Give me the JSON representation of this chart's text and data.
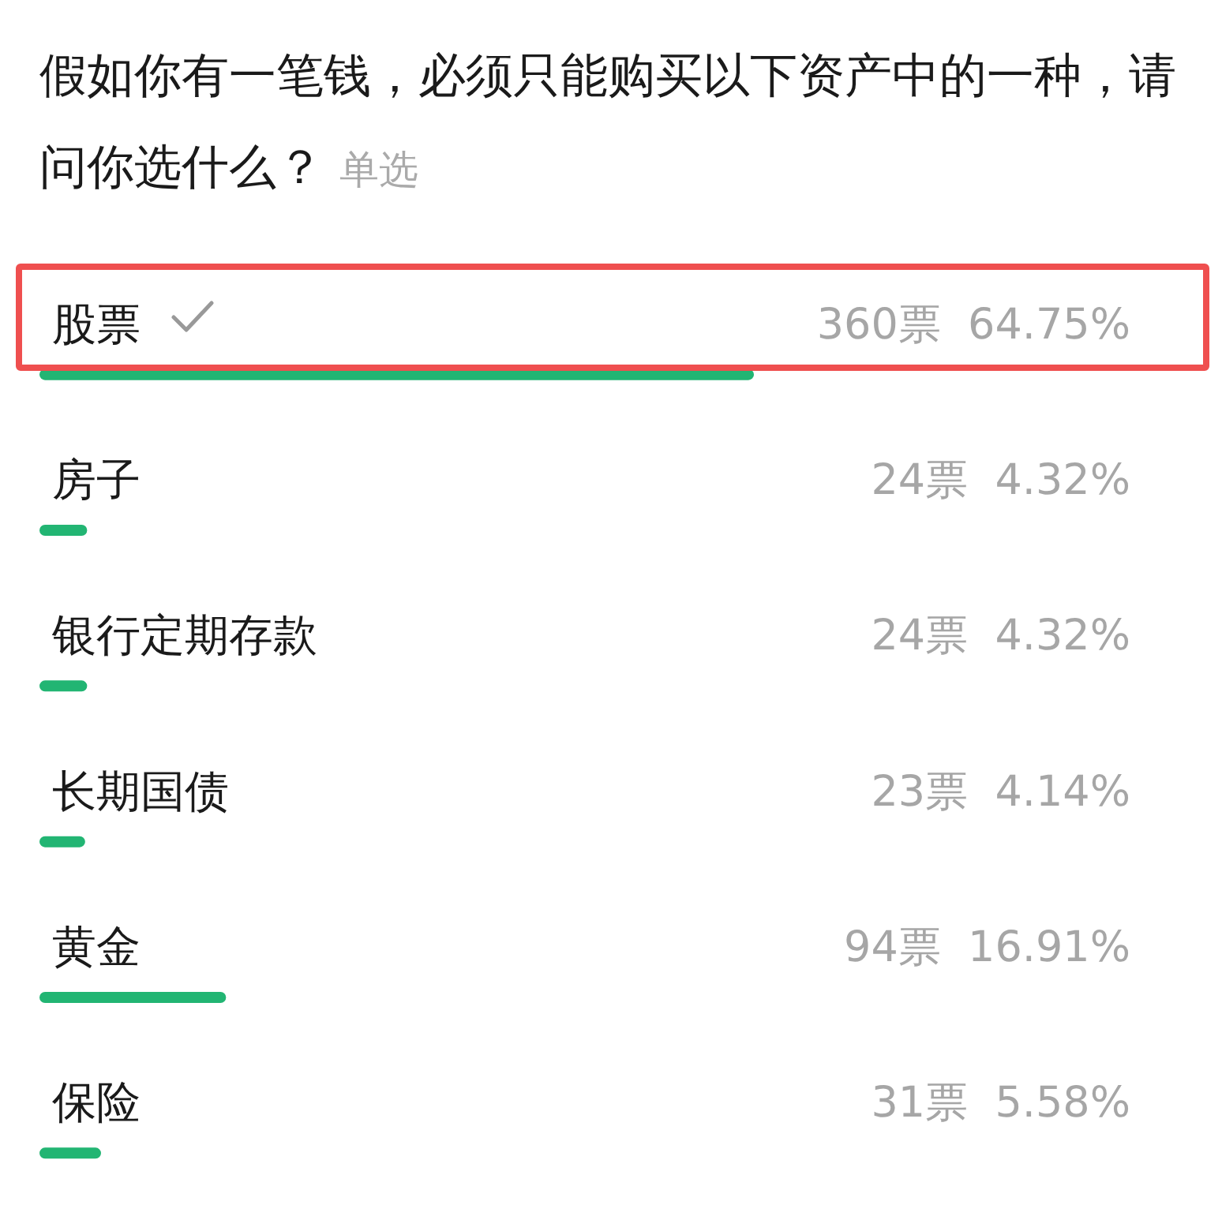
{
  "chart_data": {
    "type": "bar",
    "orientation": "horizontal",
    "title": "假如你有一笔钱，必须只能购买以下资产中的一种，请问你选什么？",
    "subtitle": "单选",
    "categories": [
      "股票",
      "房子",
      "银行定期存款",
      "长期国债",
      "黄金",
      "保险"
    ],
    "values": [
      64.75,
      4.32,
      4.32,
      4.14,
      16.91,
      5.58
    ],
    "value_labels": [
      "360票  64.75%",
      "24票  4.32%",
      "24票  4.32%",
      "23票  4.14%",
      "94票  16.91%",
      "31票  5.58%"
    ],
    "color": "#22b573",
    "tick_labels": "y"
  }
}
